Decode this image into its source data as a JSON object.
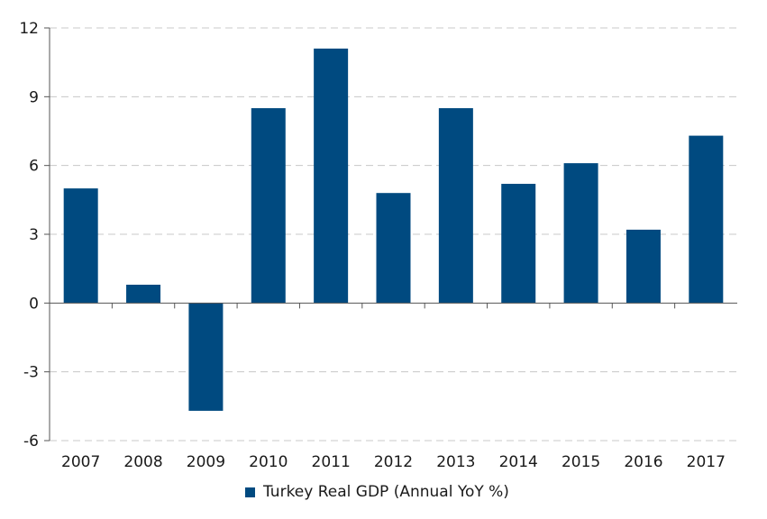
{
  "chart_data": {
    "type": "bar",
    "categories": [
      "2007",
      "2008",
      "2009",
      "2010",
      "2011",
      "2012",
      "2013",
      "2014",
      "2015",
      "2016",
      "2017"
    ],
    "series": [
      {
        "name": "Turkey Real GDP (Annual YoY %)",
        "values": [
          5.0,
          0.8,
          -4.7,
          8.5,
          11.1,
          4.8,
          8.5,
          5.2,
          6.1,
          3.2,
          7.3
        ]
      }
    ],
    "yticks": [
      "-6",
      "-3",
      "0",
      "3",
      "6",
      "9",
      "12"
    ],
    "ylim": [
      -6,
      12
    ],
    "grid": "horizontal dashed",
    "legend_position": "bottom",
    "bar_color": "#004a80"
  }
}
